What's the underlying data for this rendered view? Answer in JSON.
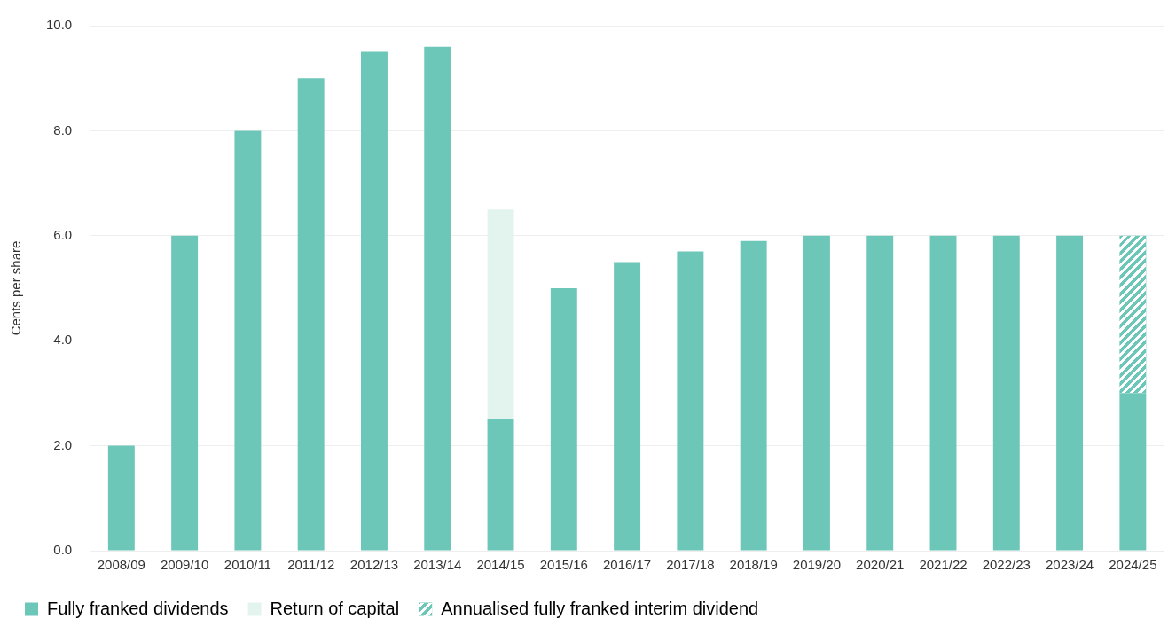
{
  "chart_data": {
    "type": "bar",
    "stacked": true,
    "ylabel": "Cents per share",
    "categories": [
      "2008/09",
      "2009/10",
      "2010/11",
      "2011/12",
      "2012/13",
      "2013/14",
      "2014/15",
      "2015/16",
      "2016/17",
      "2017/18",
      "2018/19",
      "2019/20",
      "2020/21",
      "2021/22",
      "2022/23",
      "2023/24",
      "2024/25"
    ],
    "series": [
      {
        "name": "Fully franked dividends",
        "color": "#6dc7b8",
        "values": [
          2.0,
          6.0,
          8.0,
          9.0,
          9.5,
          9.6,
          2.5,
          5.0,
          5.5,
          5.7,
          5.9,
          6.0,
          6.0,
          6.0,
          6.0,
          6.0,
          3.0
        ]
      },
      {
        "name": "Return of capital",
        "color": "#e3f4ef",
        "values": [
          null,
          null,
          null,
          null,
          null,
          null,
          4.0,
          null,
          null,
          null,
          null,
          null,
          null,
          null,
          null,
          null,
          null
        ]
      },
      {
        "name": "Annualised fully franked interim dividend",
        "color": "#6dc7b8",
        "values": [
          null,
          null,
          null,
          null,
          null,
          null,
          null,
          null,
          null,
          null,
          null,
          null,
          null,
          null,
          null,
          null,
          3.0
        ]
      }
    ],
    "ylim": [
      0,
      10
    ],
    "yticks": [
      {
        "value": 0,
        "label": "0.0"
      },
      {
        "value": 2,
        "label": "2.0"
      },
      {
        "value": 4,
        "label": "4.0"
      },
      {
        "value": 6,
        "label": "6.0"
      },
      {
        "value": 8,
        "label": "8.0"
      },
      {
        "value": 10,
        "label": "10.0"
      }
    ],
    "grid": "y",
    "legend": "bottom left"
  }
}
